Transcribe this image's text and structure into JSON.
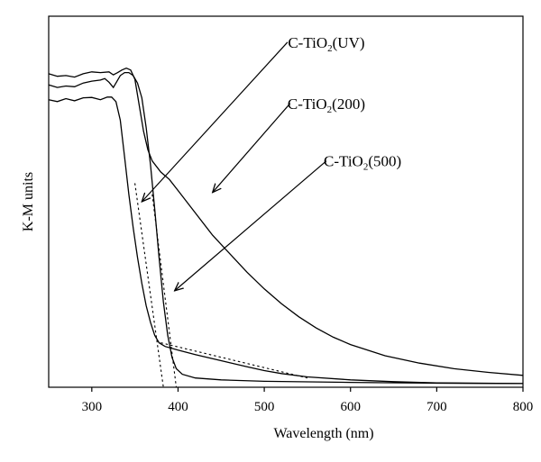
{
  "chart_data": {
    "type": "line",
    "xlabel": "Wavelength (nm)",
    "ylabel": "K-M units",
    "xlim": [
      250,
      800
    ],
    "ylim": [
      0,
      1.0
    ],
    "x_ticks": [
      300,
      400,
      500,
      600,
      700,
      800
    ],
    "yticks_labeled": false,
    "grid": false,
    "legend": "none",
    "series": [
      {
        "id": "uv",
        "label_base": "C-TiO",
        "label_sub": "2",
        "label_tail": "(UV)",
        "points": [
          [
            250,
            0.775
          ],
          [
            260,
            0.77
          ],
          [
            270,
            0.778
          ],
          [
            280,
            0.772
          ],
          [
            290,
            0.78
          ],
          [
            300,
            0.781
          ],
          [
            310,
            0.775
          ],
          [
            318,
            0.782
          ],
          [
            323,
            0.782
          ],
          [
            328,
            0.77
          ],
          [
            333,
            0.72
          ],
          [
            338,
            0.62
          ],
          [
            343,
            0.52
          ],
          [
            348,
            0.43
          ],
          [
            353,
            0.35
          ],
          [
            358,
            0.28
          ],
          [
            363,
            0.22
          ],
          [
            368,
            0.175
          ],
          [
            373,
            0.14
          ],
          [
            378,
            0.12
          ],
          [
            385,
            0.11
          ],
          [
            400,
            0.1
          ],
          [
            420,
            0.088
          ],
          [
            440,
            0.077
          ],
          [
            460,
            0.066
          ],
          [
            480,
            0.055
          ],
          [
            500,
            0.045
          ],
          [
            520,
            0.037
          ],
          [
            550,
            0.028
          ],
          [
            600,
            0.02
          ],
          [
            650,
            0.015
          ],
          [
            700,
            0.012
          ],
          [
            800,
            0.01
          ]
        ]
      },
      {
        "id": "t200",
        "label_base": "C-TiO",
        "label_sub": "2",
        "label_tail": "(200)",
        "points": [
          [
            250,
            0.845
          ],
          [
            260,
            0.838
          ],
          [
            270,
            0.84
          ],
          [
            280,
            0.836
          ],
          [
            290,
            0.845
          ],
          [
            300,
            0.85
          ],
          [
            310,
            0.848
          ],
          [
            320,
            0.85
          ],
          [
            325,
            0.842
          ],
          [
            330,
            0.848
          ],
          [
            335,
            0.855
          ],
          [
            340,
            0.86
          ],
          [
            345,
            0.855
          ],
          [
            350,
            0.83
          ],
          [
            355,
            0.76
          ],
          [
            360,
            0.69
          ],
          [
            365,
            0.64
          ],
          [
            370,
            0.61
          ],
          [
            380,
            0.58
          ],
          [
            390,
            0.56
          ],
          [
            400,
            0.53
          ],
          [
            420,
            0.47
          ],
          [
            440,
            0.41
          ],
          [
            460,
            0.36
          ],
          [
            480,
            0.31
          ],
          [
            500,
            0.265
          ],
          [
            520,
            0.225
          ],
          [
            540,
            0.19
          ],
          [
            560,
            0.16
          ],
          [
            580,
            0.135
          ],
          [
            600,
            0.115
          ],
          [
            640,
            0.085
          ],
          [
            680,
            0.065
          ],
          [
            720,
            0.05
          ],
          [
            760,
            0.04
          ],
          [
            800,
            0.032
          ]
        ]
      },
      {
        "id": "t500",
        "label_base": "C-TiO",
        "label_sub": "2",
        "label_tail": "(500)",
        "points": [
          [
            250,
            0.815
          ],
          [
            260,
            0.808
          ],
          [
            270,
            0.812
          ],
          [
            280,
            0.81
          ],
          [
            290,
            0.82
          ],
          [
            300,
            0.825
          ],
          [
            310,
            0.828
          ],
          [
            315,
            0.832
          ],
          [
            320,
            0.822
          ],
          [
            325,
            0.808
          ],
          [
            328,
            0.82
          ],
          [
            333,
            0.84
          ],
          [
            338,
            0.848
          ],
          [
            343,
            0.848
          ],
          [
            348,
            0.84
          ],
          [
            353,
            0.82
          ],
          [
            358,
            0.78
          ],
          [
            363,
            0.7
          ],
          [
            368,
            0.6
          ],
          [
            373,
            0.48
          ],
          [
            378,
            0.35
          ],
          [
            383,
            0.23
          ],
          [
            388,
            0.14
          ],
          [
            393,
            0.08
          ],
          [
            398,
            0.05
          ],
          [
            405,
            0.035
          ],
          [
            420,
            0.025
          ],
          [
            450,
            0.02
          ],
          [
            500,
            0.016
          ],
          [
            600,
            0.013
          ],
          [
            700,
            0.011
          ],
          [
            800,
            0.01
          ]
        ]
      }
    ],
    "tangents": [
      {
        "id": "tan-uv",
        "points": [
          [
            350,
            0.55
          ],
          [
            383,
            0.0
          ]
        ]
      },
      {
        "id": "tan-500",
        "points": [
          [
            370,
            0.52
          ],
          [
            398,
            0.0
          ]
        ]
      },
      {
        "id": "tan-uv-tail",
        "points": [
          [
            380,
            0.12
          ],
          [
            550,
            0.025
          ]
        ]
      }
    ],
    "annotations": [
      {
        "id": "ann-uv",
        "base": "C-TiO",
        "sub": "2",
        "tail": "(UV)",
        "text_at": [
          572,
          0.93
        ],
        "arrow_from": [
          527,
          0.93
        ],
        "arrow_to": [
          358,
          0.5
        ]
      },
      {
        "id": "ann-200",
        "base": "C-TiO",
        "sub": "2",
        "tail": "(200)",
        "text_at": [
          572,
          0.765
        ],
        "arrow_from": [
          530,
          0.765
        ],
        "arrow_to": [
          440,
          0.525
        ]
      },
      {
        "id": "ann-500",
        "base": "C-TiO",
        "sub": "2",
        "tail": "(500)",
        "text_at": [
          614,
          0.61
        ],
        "arrow_from": [
          572,
          0.61
        ],
        "arrow_to": [
          396,
          0.26
        ]
      }
    ]
  }
}
